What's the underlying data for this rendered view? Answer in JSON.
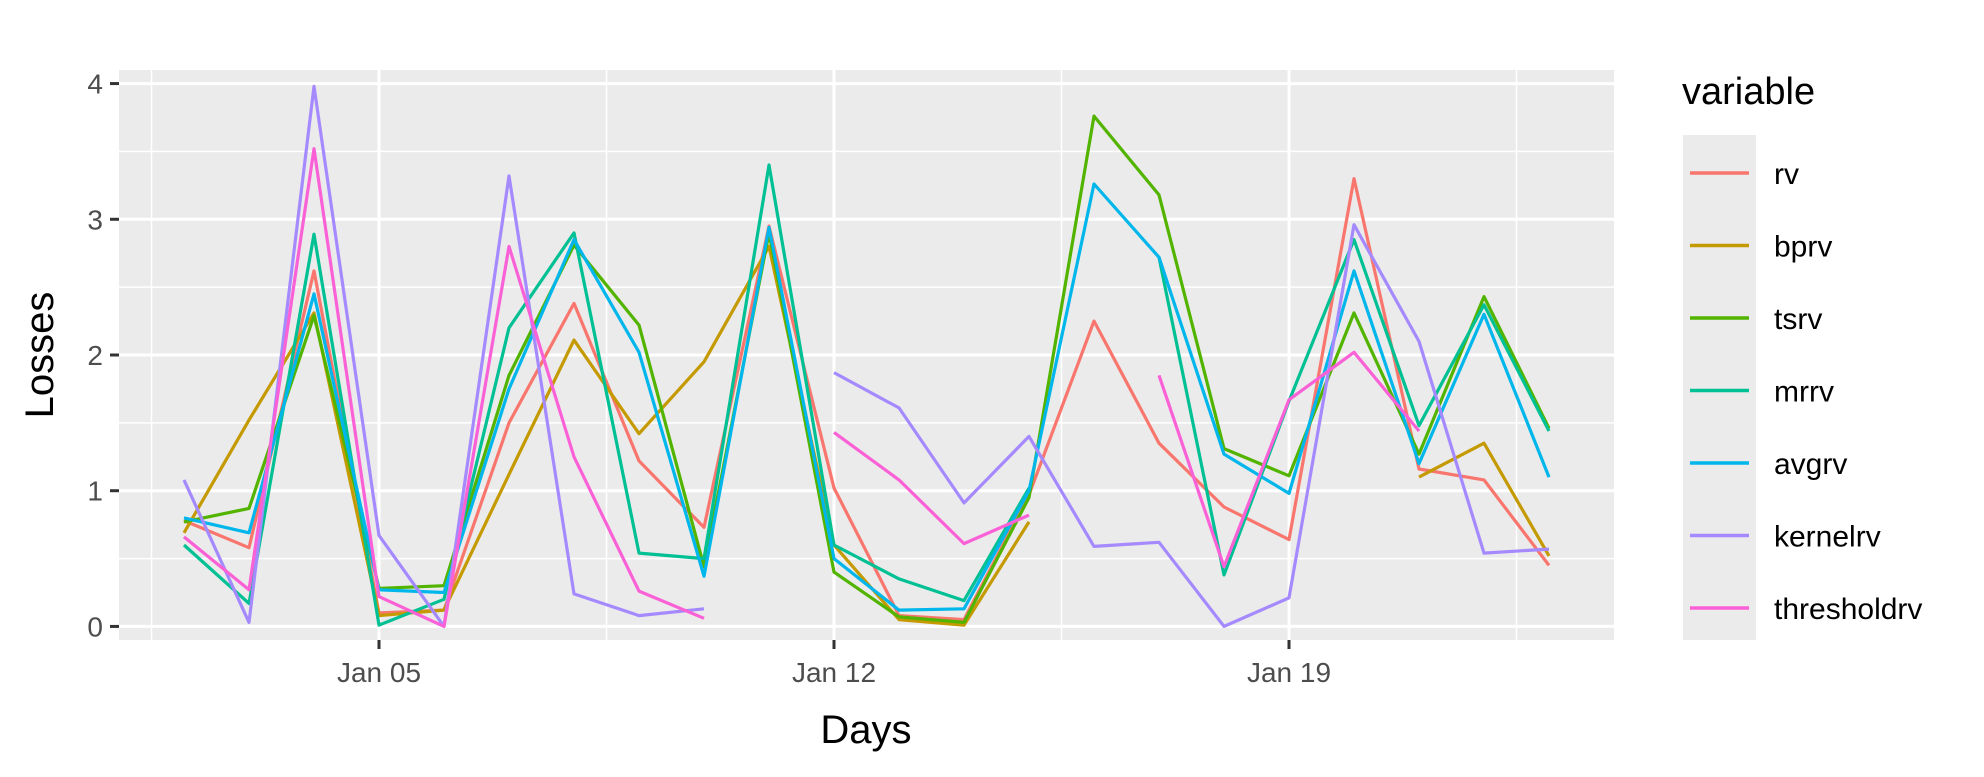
{
  "chart_data": {
    "type": "line",
    "xlabel": "Days",
    "ylabel": "Losses",
    "x_ticks": [
      {
        "date": "2000-01-05",
        "label": "Jan 05"
      },
      {
        "date": "2000-01-12",
        "label": "Jan 12"
      },
      {
        "date": "2000-01-19",
        "label": "Jan 19"
      }
    ],
    "x_range": [
      "2000-01-01",
      "2000-01-24"
    ],
    "y_ticks": [
      0,
      1,
      2,
      3,
      4
    ],
    "ylim": [
      -0.1,
      4.1
    ],
    "grid": true,
    "legend": {
      "title": "variable",
      "position": "right"
    },
    "x": [
      "2000-01-02",
      "2000-01-03",
      "2000-01-04",
      "2000-01-05",
      "2000-01-06",
      "2000-01-07",
      "2000-01-08",
      "2000-01-09",
      "2000-01-10",
      "2000-01-11",
      "2000-01-12",
      "2000-01-13",
      "2000-01-14",
      "2000-01-15",
      "2000-01-16",
      "2000-01-17",
      "2000-01-18",
      "2000-01-19",
      "2000-01-20",
      "2000-01-21",
      "2000-01-22",
      "2000-01-23"
    ],
    "series": [
      {
        "name": "rv",
        "color": "#F8766D",
        "values": [
          0.78,
          0.58,
          2.62,
          0.1,
          0.12,
          1.5,
          2.38,
          1.22,
          0.73,
          2.95,
          1.02,
          0.08,
          0.05,
          0.97,
          2.25,
          1.35,
          0.88,
          0.64,
          3.3,
          1.16,
          1.08,
          0.45
        ]
      },
      {
        "name": "bprv",
        "color": "#C49A00",
        "values": [
          0.69,
          1.52,
          2.31,
          0.08,
          0.12,
          1.12,
          2.11,
          1.42,
          1.95,
          2.8,
          0.6,
          0.05,
          0.01,
          0.77,
          null,
          null,
          null,
          null,
          null,
          1.1,
          1.35,
          0.52
        ]
      },
      {
        "name": "tsrv",
        "color": "#53B400",
        "values": [
          0.77,
          0.87,
          2.29,
          0.28,
          0.3,
          1.85,
          2.81,
          2.22,
          0.44,
          2.9,
          0.4,
          0.07,
          0.03,
          0.95,
          3.76,
          3.18,
          1.31,
          1.11,
          2.31,
          1.27,
          2.43,
          1.46
        ]
      },
      {
        "name": "mrrv",
        "color": "#00C094",
        "values": [
          0.6,
          0.17,
          2.89,
          0.01,
          0.2,
          2.2,
          2.9,
          0.54,
          0.5,
          3.4,
          0.6,
          0.35,
          0.19,
          1.02,
          null,
          2.72,
          0.38,
          1.66,
          2.85,
          1.48,
          2.37,
          1.44
        ]
      },
      {
        "name": "avgrv",
        "color": "#00B6EB",
        "values": [
          0.8,
          0.69,
          2.45,
          0.27,
          0.25,
          1.75,
          2.85,
          2.02,
          0.37,
          2.94,
          0.5,
          0.12,
          0.13,
          1.0,
          3.26,
          2.72,
          1.27,
          0.98,
          2.62,
          1.2,
          2.3,
          1.1
        ]
      },
      {
        "name": "kernelrv",
        "color": "#A58AFF",
        "values": [
          1.08,
          0.03,
          3.98,
          0.67,
          0.0,
          3.32,
          0.24,
          0.08,
          0.13,
          null,
          1.87,
          1.61,
          0.91,
          1.4,
          0.59,
          0.62,
          0.0,
          0.21,
          2.96,
          2.1,
          0.54,
          0.57
        ]
      },
      {
        "name": "thresholdrv",
        "color": "#FB61D7",
        "values": [
          0.66,
          0.27,
          3.52,
          0.22,
          0.0,
          2.8,
          1.25,
          0.26,
          0.06,
          null,
          1.43,
          1.08,
          0.61,
          0.82,
          null,
          1.85,
          0.44,
          1.67,
          2.02,
          1.44,
          null,
          null
        ]
      }
    ]
  }
}
